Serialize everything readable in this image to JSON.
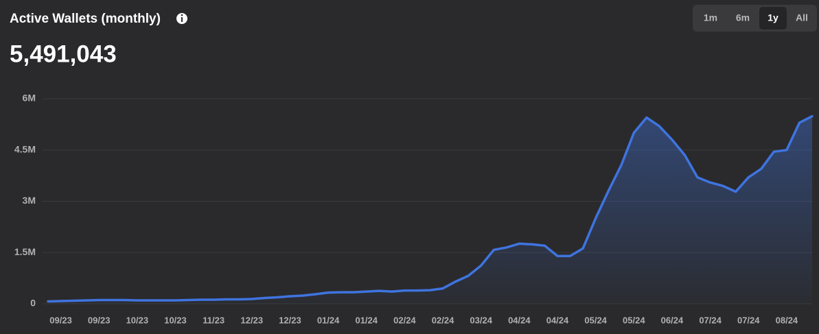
{
  "chart_data": {
    "type": "area",
    "title": "Active Wallets (monthly)",
    "headline": "5,491,043",
    "range_buttons": [
      "1m",
      "6m",
      "1y",
      "All"
    ],
    "selected_range_index": 2,
    "color": "#3f74e0",
    "grid": true,
    "ylim": [
      0,
      6000000
    ],
    "yticks": [
      0,
      {
        "value": 1500000,
        "label": "1.5M"
      },
      {
        "value": 3000000,
        "label": "3M"
      },
      {
        "value": 4500000,
        "label": "4.5M"
      },
      {
        "value": 6000000,
        "label": "6M"
      }
    ],
    "categories": [
      null,
      "09/23",
      null,
      null,
      "09/23",
      null,
      null,
      "10/23",
      null,
      null,
      "10/23",
      null,
      null,
      "11/23",
      null,
      null,
      "12/23",
      null,
      null,
      "12/23",
      null,
      null,
      "01/24",
      null,
      null,
      "01/24",
      null,
      null,
      "02/24",
      null,
      null,
      "02/24",
      null,
      null,
      "03/24",
      null,
      null,
      "04/24",
      null,
      null,
      "04/24",
      null,
      null,
      "05/24",
      null,
      null,
      "05/24",
      null,
      null,
      "06/24",
      null,
      null,
      "07/24",
      null,
      null,
      "07/24",
      null,
      null,
      "08/24",
      null,
      null
    ],
    "values": [
      70000,
      80000,
      90000,
      100000,
      110000,
      110000,
      110000,
      100000,
      100000,
      100000,
      100000,
      110000,
      120000,
      120000,
      130000,
      130000,
      140000,
      170000,
      190000,
      220000,
      240000,
      280000,
      330000,
      340000,
      340000,
      360000,
      380000,
      360000,
      390000,
      390000,
      400000,
      450000,
      650000,
      820000,
      1120000,
      1580000,
      1650000,
      1760000,
      1740000,
      1700000,
      1400000,
      1400000,
      1620000,
      2500000,
      3300000,
      4050000,
      5000000,
      5450000,
      5200000,
      4800000,
      4350000,
      3700000,
      3550000,
      3450000,
      3280000,
      3700000,
      3950000,
      4450000,
      4500000,
      5300000,
      5491043
    ]
  }
}
